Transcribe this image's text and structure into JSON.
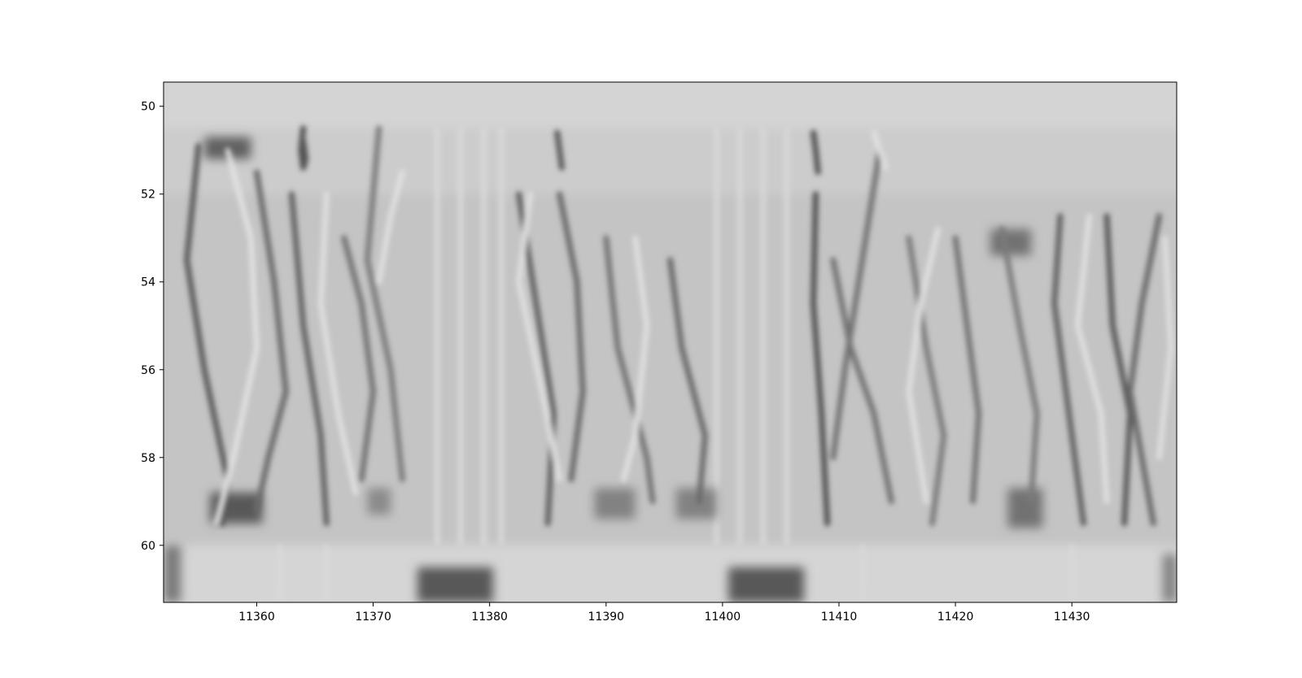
{
  "chart_data": {
    "type": "heatmap",
    "title": "",
    "xlabel": "",
    "ylabel": "",
    "xlim": [
      11352,
      11439
    ],
    "ylim": [
      61.3,
      49.45
    ],
    "y_inverted": true,
    "grid": false,
    "colormap": "gray",
    "x_ticks": [
      11360,
      11370,
      11380,
      11390,
      11400,
      11410,
      11420,
      11430
    ],
    "y_ticks": [
      50,
      52,
      54,
      56,
      58,
      60
    ],
    "colors": {
      "background": "#d4d4d4",
      "dark": "#303030",
      "light": "#f2f2f2",
      "axis": "#000000"
    },
    "bands": [
      {
        "y": [
          49.45,
          50.5
        ],
        "level": 0.0
      },
      {
        "y": [
          50.5,
          52.0
        ],
        "level": -0.05
      },
      {
        "y": [
          52.0,
          60.0
        ],
        "level": -0.1
      },
      {
        "y": [
          60.0,
          61.3
        ],
        "level": 0.02
      }
    ],
    "dark_patches": [
      {
        "x": [
          11355.5,
          11359.5
        ],
        "y": [
          50.7,
          51.2
        ],
        "level": -0.7
      },
      {
        "x": [
          11356.0,
          11360.5
        ],
        "y": [
          58.8,
          59.5
        ],
        "level": -0.75
      },
      {
        "x": [
          11373.8,
          11380.3
        ],
        "y": [
          60.5,
          61.3
        ],
        "level": -0.75
      },
      {
        "x": [
          11400.5,
          11407.0
        ],
        "y": [
          60.5,
          61.3
        ],
        "level": -0.75
      },
      {
        "x": [
          11423.0,
          11426.5
        ],
        "y": [
          52.8,
          53.4
        ],
        "level": -0.6
      },
      {
        "x": [
          11424.5,
          11427.5
        ],
        "y": [
          58.7,
          59.6
        ],
        "level": -0.6
      },
      {
        "x": [
          11369.5,
          11371.5
        ],
        "y": [
          58.7,
          59.3
        ],
        "level": -0.45
      },
      {
        "x": [
          11389.0,
          11392.5
        ],
        "y": [
          58.7,
          59.4
        ],
        "level": -0.5
      },
      {
        "x": [
          11396.0,
          11399.5
        ],
        "y": [
          58.7,
          59.4
        ],
        "level": -0.5
      },
      {
        "x": [
          11352.0,
          11353.5
        ],
        "y": [
          60.0,
          61.3
        ],
        "level": -0.55
      },
      {
        "x": [
          11437.8,
          11439.0
        ],
        "y": [
          60.2,
          61.3
        ],
        "level": -0.5
      }
    ],
    "strokes": [
      {
        "x": [
          11355.0,
          11354.0,
          11355.5,
          11357.5,
          11357.0
        ],
        "y": [
          50.9,
          53.5,
          56.0,
          58.5,
          59.5
        ],
        "level": -0.75
      },
      {
        "x": [
          11357.5,
          11359.5,
          11360.0,
          11358.0,
          11356.5
        ],
        "y": [
          51.0,
          53.0,
          55.5,
          58.0,
          59.5
        ],
        "level": 0.55
      },
      {
        "x": [
          11360.0,
          11361.5,
          11362.5,
          11361.0,
          11360.0
        ],
        "y": [
          51.5,
          54.0,
          56.5,
          58.0,
          59.2
        ],
        "level": -0.65
      },
      {
        "x": [
          11364.0,
          11363.8,
          11364.0,
          11364.2,
          11364.0
        ],
        "y": [
          50.5,
          51.0,
          51.4,
          51.2,
          50.8
        ],
        "level": -0.8
      },
      {
        "x": [
          11363.0,
          11364.0,
          11365.5,
          11366.0
        ],
        "y": [
          52.0,
          55.0,
          57.5,
          59.5
        ],
        "level": -0.7
      },
      {
        "x": [
          11366.0,
          11365.5,
          11367.0,
          11368.5
        ],
        "y": [
          52.0,
          54.5,
          57.0,
          58.8
        ],
        "level": 0.5
      },
      {
        "x": [
          11367.5,
          11369.0,
          11370.0,
          11369.0
        ],
        "y": [
          53.0,
          54.5,
          56.5,
          58.5
        ],
        "level": -0.6
      },
      {
        "x": [
          11370.5,
          11369.5,
          11371.5,
          11372.5
        ],
        "y": [
          50.5,
          53.5,
          56.0,
          58.5
        ],
        "level": -0.55
      },
      {
        "x": [
          11372.5,
          11371.5,
          11370.5
        ],
        "y": [
          51.5,
          52.5,
          54.0
        ],
        "level": 0.5
      },
      {
        "x": [
          11382.5,
          11384.0,
          11385.5,
          11385.0
        ],
        "y": [
          52.0,
          54.5,
          57.0,
          59.5
        ],
        "level": -0.7
      },
      {
        "x": [
          11383.5,
          11382.5,
          11384.5,
          11386.0
        ],
        "y": [
          52.0,
          54.0,
          56.5,
          58.5
        ],
        "level": 0.5
      },
      {
        "x": [
          11385.8,
          11386.0,
          11386.2
        ],
        "y": [
          50.6,
          51.0,
          51.4
        ],
        "level": -0.75
      },
      {
        "x": [
          11386.0,
          11387.5,
          11388.0,
          11387.0
        ],
        "y": [
          52.0,
          54.0,
          56.5,
          58.5
        ],
        "level": -0.65
      },
      {
        "x": [
          11390.0,
          11391.0,
          11393.5,
          11394.0
        ],
        "y": [
          53.0,
          55.5,
          58.0,
          59.0
        ],
        "level": -0.6
      },
      {
        "x": [
          11392.5,
          11393.5,
          11392.5,
          11391.5
        ],
        "y": [
          53.0,
          55.0,
          57.5,
          58.5
        ],
        "level": 0.5
      },
      {
        "x": [
          11395.5,
          11396.5,
          11398.5,
          11398.0
        ],
        "y": [
          53.5,
          55.5,
          57.5,
          59.0
        ],
        "level": -0.65
      },
      {
        "x": [
          11407.8,
          11408.0,
          11408.2
        ],
        "y": [
          50.6,
          51.0,
          51.5
        ],
        "level": -0.8
      },
      {
        "x": [
          11408.0,
          11407.8,
          11408.5,
          11409.0
        ],
        "y": [
          52.0,
          54.5,
          57.0,
          59.5
        ],
        "level": -0.8
      },
      {
        "x": [
          11409.5,
          11411.0,
          11413.0,
          11414.5
        ],
        "y": [
          53.5,
          55.5,
          57.0,
          59.0
        ],
        "level": -0.6
      },
      {
        "x": [
          11413.5,
          11412.0,
          11410.5,
          11409.5
        ],
        "y": [
          51.0,
          53.5,
          56.0,
          58.0
        ],
        "level": -0.6
      },
      {
        "x": [
          11413.0,
          11413.5,
          11414.0
        ],
        "y": [
          50.6,
          51.0,
          51.4
        ],
        "level": 0.5
      },
      {
        "x": [
          11416.0,
          11417.5,
          11419.0,
          11418.0
        ],
        "y": [
          53.0,
          55.5,
          57.5,
          59.5
        ],
        "level": -0.55
      },
      {
        "x": [
          11418.5,
          11417.0,
          11416.0,
          11417.5
        ],
        "y": [
          52.8,
          54.5,
          56.5,
          59.0
        ],
        "level": 0.5
      },
      {
        "x": [
          11420.0,
          11421.0,
          11422.0,
          11421.5
        ],
        "y": [
          53.0,
          55.0,
          57.0,
          59.0
        ],
        "level": -0.6
      },
      {
        "x": [
          11424.0,
          11425.5,
          11427.0,
          11426.5
        ],
        "y": [
          52.8,
          55.0,
          57.0,
          59.0
        ],
        "level": -0.55
      },
      {
        "x": [
          11429.0,
          11428.5,
          11429.5,
          11431.0
        ],
        "y": [
          52.5,
          54.5,
          56.5,
          59.5
        ],
        "level": -0.7
      },
      {
        "x": [
          11431.5,
          11430.5,
          11432.5,
          11433.0
        ],
        "y": [
          52.5,
          55.0,
          57.0,
          59.0
        ],
        "level": 0.5
      },
      {
        "x": [
          11433.0,
          11433.5,
          11435.0,
          11434.5
        ],
        "y": [
          52.5,
          55.0,
          57.0,
          59.5
        ],
        "level": -0.75
      },
      {
        "x": [
          11437.5,
          11436.0,
          11435.0,
          11437.0
        ],
        "y": [
          52.5,
          54.5,
          56.5,
          59.5
        ],
        "level": -0.65
      },
      {
        "x": [
          11438.0,
          11438.5,
          11437.5
        ],
        "y": [
          53.0,
          55.5,
          58.0
        ],
        "level": 0.45
      }
    ],
    "vertical_ridges": [
      {
        "x": 11375.5,
        "y": [
          50.5,
          60.0
        ],
        "level": 0.2
      },
      {
        "x": 11377.5,
        "y": [
          50.5,
          60.0
        ],
        "level": 0.2
      },
      {
        "x": 11379.5,
        "y": [
          50.5,
          60.0
        ],
        "level": 0.2
      },
      {
        "x": 11381.0,
        "y": [
          50.5,
          60.0
        ],
        "level": 0.18
      },
      {
        "x": 11399.5,
        "y": [
          50.5,
          60.0
        ],
        "level": 0.15
      },
      {
        "x": 11401.5,
        "y": [
          50.5,
          60.0
        ],
        "level": 0.18
      },
      {
        "x": 11403.5,
        "y": [
          50.5,
          60.0
        ],
        "level": 0.18
      },
      {
        "x": 11405.5,
        "y": [
          50.5,
          60.0
        ],
        "level": 0.15
      },
      {
        "x": 11362.0,
        "y": [
          60.0,
          61.3
        ],
        "level": 0.15
      },
      {
        "x": 11366.0,
        "y": [
          60.0,
          61.3
        ],
        "level": 0.15
      },
      {
        "x": 11412.0,
        "y": [
          60.0,
          61.3
        ],
        "level": 0.12
      },
      {
        "x": 11430.0,
        "y": [
          60.0,
          61.3
        ],
        "level": 0.12
      }
    ]
  }
}
